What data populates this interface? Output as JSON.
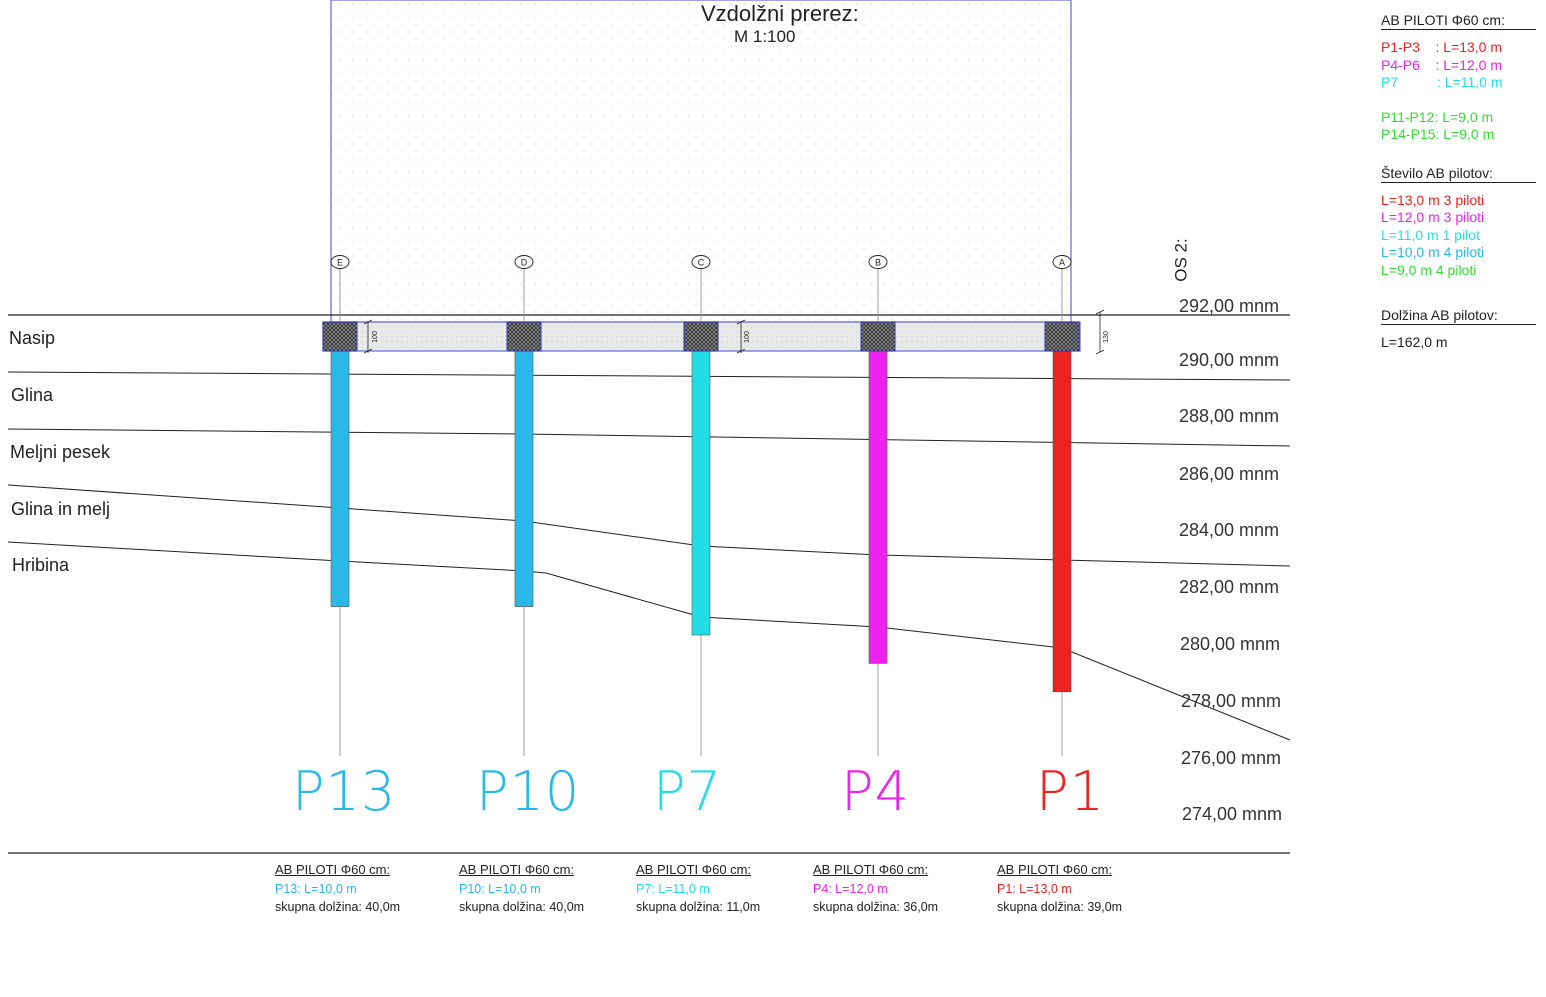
{
  "header": {
    "title": "Vzdolžni prerez:",
    "scale": "M 1:100",
    "axis_label": "OS 2:"
  },
  "axis_markers": [
    "E",
    "D",
    "C",
    "B",
    "A"
  ],
  "dimension_labels": [
    "100",
    "100",
    "130"
  ],
  "layers": [
    {
      "name": "Nasip"
    },
    {
      "name": "Glina"
    },
    {
      "name": "Meljni pesek"
    },
    {
      "name": "Glina in melj"
    },
    {
      "name": "Hribina"
    }
  ],
  "elevations": [
    "292,00 mnm",
    "290,00 mnm",
    "288,00 mnm",
    "286,00 mnm",
    "284,00 mnm",
    "282,00 mnm",
    "280,00 mnm",
    "278,00 mnm",
    "276,00 mnm",
    "274,00 mnm"
  ],
  "piles": [
    {
      "label": "P13",
      "axis": "E",
      "length_m": 10.0,
      "color": "#29b8e8",
      "info_title": "AB PILOTI Φ60 cm:",
      "info_length": "P13: L=10,0 m",
      "info_total": "skupna dolžina: 40,0m"
    },
    {
      "label": "P10",
      "axis": "D",
      "length_m": 10.0,
      "color": "#29b8e8",
      "info_title": "AB PILOTI Φ60 cm:",
      "info_length": "P10: L=10,0 m",
      "info_total": "skupna dolžina: 40,0m"
    },
    {
      "label": "P7",
      "axis": "C",
      "length_m": 11.0,
      "color": "#22dde6",
      "info_title": "AB PILOTI Φ60 cm:",
      "info_length": "P7: L=11,0 m",
      "info_total": "skupna dolžina: 11,0m"
    },
    {
      "label": "P4",
      "axis": "B",
      "length_m": 12.0,
      "color": "#ee22ee",
      "info_title": "AB PILOTI Φ60 cm:",
      "info_length": "P4: L=12,0 m",
      "info_total": "skupna dolžina: 36,0m"
    },
    {
      "label": "P1",
      "axis": "A",
      "length_m": 13.0,
      "color": "#ee2222",
      "info_title": "AB PILOTI Φ60 cm:",
      "info_length": "P1: L=13,0 m",
      "info_total": "skupna dolžina: 39,0m"
    }
  ],
  "legend": {
    "title": "AB PILOTI Φ60 cm:",
    "pile_lengths": [
      {
        "text": "P1-P3    : L=13,0 m",
        "color": "#ee2222"
      },
      {
        "text": "P4-P6    : L=12,0 m",
        "color": "#ee22ee"
      },
      {
        "text": "P7          : L=11,0 m",
        "color": "#22dde6"
      }
    ],
    "pile_lengths_2": [
      {
        "text": "P11-P12: L=9,0 m",
        "color": "#33dd33"
      },
      {
        "text": "P14-P15: L=9,0 m",
        "color": "#33dd33"
      }
    ],
    "count_title": "Število AB pilotov:",
    "counts": [
      {
        "text": "L=13,0 m 3 piloti",
        "color": "#ee2222"
      },
      {
        "text": "L=12,0 m 3 piloti",
        "color": "#ee22ee"
      },
      {
        "text": "L=11,0 m 1 pilot",
        "color": "#22dde6"
      },
      {
        "text": "L=10,0 m 4 piloti",
        "color": "#29b8e8"
      },
      {
        "text": "L=9,0 m 4 piloti",
        "color": "#33dd33"
      }
    ],
    "total_title": "Dolžina AB pilotov:",
    "total_value": "L=162,0 m"
  },
  "colors": {
    "frame": "#6666cc",
    "cap_hatch": "#444444",
    "beam_fill": "#e6e6e6",
    "line": "#222222"
  }
}
